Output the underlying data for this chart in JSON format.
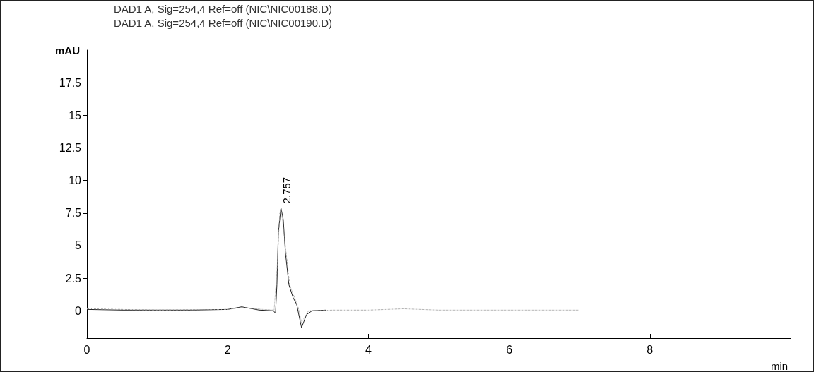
{
  "chart_data": {
    "type": "line",
    "xlabel": "min",
    "ylabel": "mAU",
    "annotations": [
      "DAD1 A, Sig=254,4 Ref=off (NIC\\NIC00188.D)",
      "DAD1 A, Sig=254,4 Ref=off (NIC\\NIC00190.D)",
      {
        "text": "2.757",
        "x": 2.757,
        "y": 7.9
      }
    ],
    "series": [
      {
        "color": "#222222",
        "line_style": "solid",
        "x": [
          0,
          0.5,
          1,
          1.5,
          2,
          2.2,
          2.3,
          2.45,
          2.65,
          2.68,
          2.7,
          2.72,
          2.757,
          2.79,
          2.82,
          2.87,
          2.93,
          2.98,
          3.05,
          3.12,
          3.2,
          3.4
        ],
        "values": [
          0.1,
          0.05,
          0.05,
          0.05,
          0.1,
          0.3,
          0.2,
          0.05,
          0.0,
          -0.2,
          2,
          6,
          7.9,
          7,
          4.5,
          2,
          1.0,
          0.5,
          -1.3,
          -0.3,
          0.0,
          0.05
        ]
      },
      {
        "color": "#999999",
        "line_style": "dotted",
        "x": [
          0,
          0.5,
          1,
          2,
          2.2,
          2.5,
          2.66,
          2.7,
          2.74,
          2.757,
          2.8,
          2.88,
          2.95,
          3.0,
          3.05,
          3.15,
          3.5,
          4,
          4.5,
          5,
          6,
          7
        ],
        "values": [
          0.15,
          0.1,
          0.05,
          0.1,
          0.25,
          0.1,
          0.05,
          3,
          7.5,
          7.9,
          6,
          2,
          1,
          0.3,
          -0.9,
          0.0,
          0.05,
          0.05,
          0.15,
          0.05,
          0.05,
          0.05
        ]
      }
    ],
    "marker": "none",
    "grid": false,
    "xlim": [
      0,
      10
    ],
    "xticks": [
      0,
      2,
      4,
      6,
      8
    ],
    "ylim": [
      -2.1,
      20
    ],
    "yticks": [
      0,
      2.5,
      5,
      7.5,
      10,
      12.5,
      15,
      17.5
    ]
  }
}
